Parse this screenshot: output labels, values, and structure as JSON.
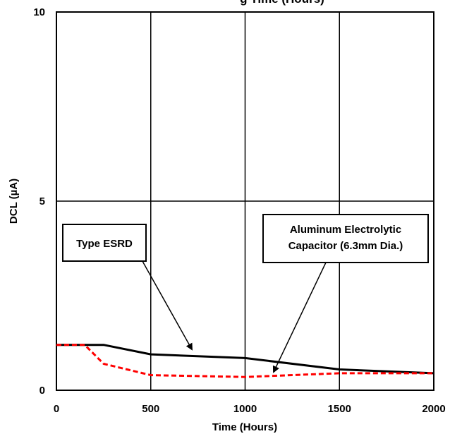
{
  "chart_data": {
    "type": "line",
    "title": "",
    "title_fragment": "g           Time (Hours)",
    "xlabel": "Time (Hours)",
    "ylabel": "DCL (µA)",
    "xlim": [
      0,
      2000
    ],
    "ylim": [
      0,
      10
    ],
    "x_ticks": [
      "0",
      "500",
      "1000",
      "1500",
      "2000"
    ],
    "y_ticks": [
      "0",
      "5",
      "10"
    ],
    "grid": true,
    "series": [
      {
        "name": "Type ESRD",
        "color": "#000000",
        "style": "solid",
        "x": [
          0,
          250,
          500,
          1000,
          1500,
          2000
        ],
        "y": [
          1.2,
          1.2,
          0.95,
          0.85,
          0.55,
          0.45
        ]
      },
      {
        "name": "Aluminum Electrolytic Capacitor (6.3mm Dia.)",
        "color": "#ff0000",
        "style": "dashed",
        "x": [
          0,
          150,
          250,
          500,
          1000,
          1500,
          2000
        ],
        "y": [
          1.2,
          1.2,
          0.7,
          0.4,
          0.35,
          0.45,
          0.45
        ]
      }
    ],
    "annotations": [
      {
        "lines": [
          "Type ESRD"
        ],
        "series": 0
      },
      {
        "lines": [
          "Aluminum Electrolytic",
          "Capacitor (6.3mm  Dia.)"
        ],
        "series": 1
      }
    ]
  }
}
